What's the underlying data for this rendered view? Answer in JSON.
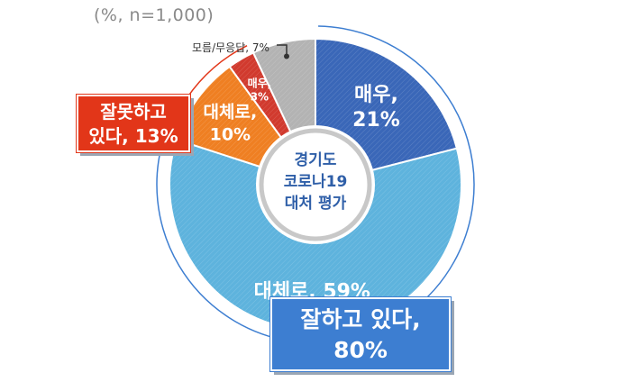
{
  "note": "(%, n=1,000)",
  "center_label": [
    "경기도",
    "코로나19",
    "대처 평가"
  ],
  "groups": {
    "bad": [
      "잘못하고",
      "있다, 13%"
    ],
    "good": [
      "잘하고 있다,",
      "80%"
    ]
  },
  "colors": {
    "very_good": "#3a67b8",
    "somewhat_good": "#5eb3dd",
    "somewhat_bad": "#ef7f22",
    "very_bad": "#d13a2e",
    "dont_know": "#b3b3b3",
    "bad_box": "#e23619",
    "good_box": "#3d7ed1"
  },
  "chart_data": {
    "type": "pie",
    "donut": true,
    "slices": [
      {
        "label_lines": [
          "매우,",
          "21%"
        ],
        "value": 21,
        "color": "#3a67b8"
      },
      {
        "label_lines": [
          "대체로, 59%"
        ],
        "value": 59,
        "color": "#5eb3dd"
      },
      {
        "label_lines": [
          "대체로,",
          "10%"
        ],
        "value": 10,
        "color": "#ef7f22"
      },
      {
        "label_lines": [
          "매우,",
          "3%"
        ],
        "value": 3,
        "color": "#d13a2e"
      },
      {
        "label_lines": [
          "모름/무응답, 7%"
        ],
        "value": 7,
        "color": "#b3b3b3"
      }
    ]
  }
}
